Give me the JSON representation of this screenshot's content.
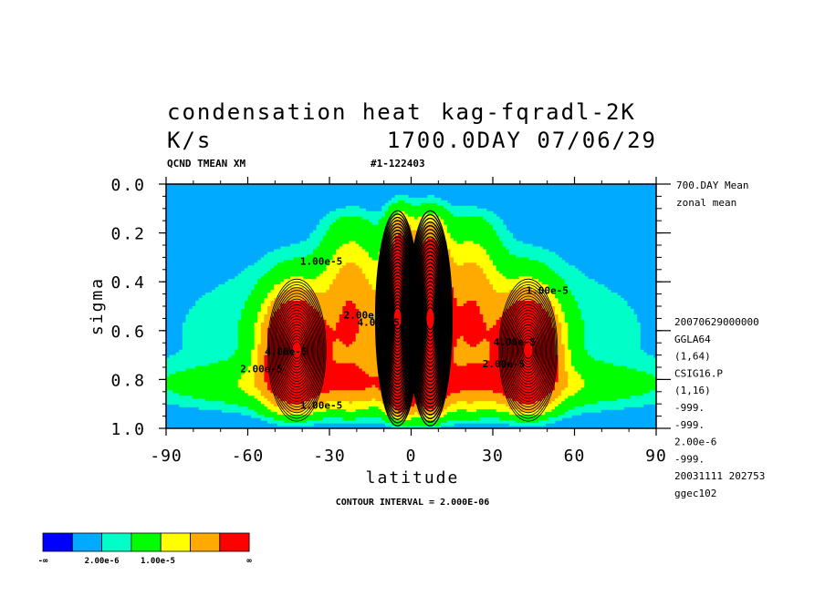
{
  "chart_data": {
    "type": "heatmap",
    "title": "condensation heat",
    "title_overlap": "kag-fqradl-2K",
    "units": "K/s",
    "time_label": "1700.0DAY 07/06/29",
    "subtitle_left": "QCND TMEAN XM",
    "subtitle_mid": "#1-122403",
    "xlabel": "latitude",
    "ylabel": "sigma",
    "xlim": [
      -90,
      90
    ],
    "ylim": [
      1.0,
      0.0
    ],
    "xticks": [
      "-90",
      "-60",
      "-30",
      "0",
      "30",
      "60",
      "90"
    ],
    "xtick_values": [
      -90,
      -60,
      -30,
      0,
      30,
      60,
      90
    ],
    "yticks": [
      "0.0",
      "0.2",
      "0.4",
      "0.6",
      "0.8",
      "1.0"
    ],
    "ytick_values": [
      0.0,
      0.2,
      0.4,
      0.6,
      0.8,
      1.0
    ],
    "contour_interval_text": "CONTOUR INTERVAL = 2.000E-06",
    "contour_labels": [
      {
        "text": "1.00e-5",
        "lat": -33,
        "sigma": 0.33
      },
      {
        "text": "2.00e-5",
        "lat": -55,
        "sigma": 0.77
      },
      {
        "text": "4.00e-5",
        "lat": -46,
        "sigma": 0.7
      },
      {
        "text": "1.00e-5",
        "lat": -33,
        "sigma": 0.92
      },
      {
        "text": "2.00e-5",
        "lat": -17,
        "sigma": 0.55
      },
      {
        "text": "4.00e-5",
        "lat": -12,
        "sigma": 0.58
      },
      {
        "text": "1.00e-5",
        "lat": 50,
        "sigma": 0.45
      },
      {
        "text": "2.00e-5",
        "lat": 34,
        "sigma": 0.75
      },
      {
        "text": "4.00e-5",
        "lat": 38,
        "sigma": 0.66
      }
    ],
    "right_info": [
      "700.DAY Mean",
      "zonal mean"
    ],
    "right_meta": [
      "20070629000000",
      "GGLA64",
      "(1,64)",
      "CSIG16.P",
      "(1,16)",
      "-999.",
      "-999.",
      "2.00e-6",
      "-999.",
      "20031111 202753",
      "ggec102"
    ],
    "legend": {
      "colors": [
        "#0000ff",
        "#00aaff",
        "#00ffc8",
        "#00ff00",
        "#ffff00",
        "#ffaa00",
        "#ff0000"
      ],
      "labels": [
        "-∞",
        "2.00e-6",
        "1.00e-5",
        "∞"
      ]
    },
    "background_color": "#00aaff",
    "extrema": [
      {
        "lat": -42,
        "sigma": 0.68,
        "peak": 6e-05
      },
      {
        "lat": -5,
        "sigma": 0.55,
        "peak": 8e-05
      },
      {
        "lat": 7,
        "sigma": 0.55,
        "peak": 7e-05
      },
      {
        "lat": 43,
        "sigma": 0.68,
        "peak": 6e-05
      }
    ]
  }
}
